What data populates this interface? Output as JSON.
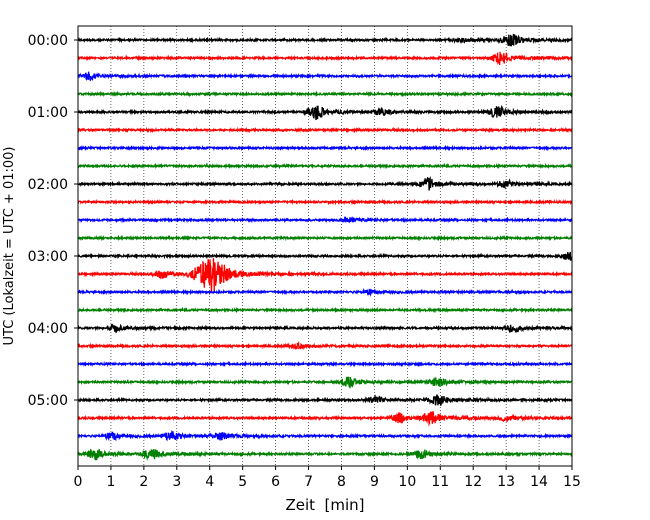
{
  "chart_data": {
    "type": "line",
    "title": "",
    "xlabel": "Zeit  [min]",
    "ylabel": "UTC (Lokalzeit = UTC + 01:00)",
    "xlim": [
      0,
      15
    ],
    "x_ticks": [
      "0",
      "1",
      "2",
      "3",
      "4",
      "5",
      "6",
      "7",
      "8",
      "9",
      "10",
      "11",
      "12",
      "13",
      "14",
      "15"
    ],
    "y_ticks": [
      "00:00",
      "01:00",
      "02:00",
      "03:00",
      "04:00",
      "05:00"
    ],
    "y_tick_trace_index": [
      0,
      4,
      8,
      12,
      16,
      20
    ],
    "grid": "vertical dotted",
    "trace_interval_min": 15,
    "trace_colors": [
      "#000000",
      "#ff0000",
      "#0000ff",
      "#008000"
    ],
    "traces": [
      {
        "start": "00:00",
        "color": "#000000",
        "bursts": [
          {
            "t": 13.1,
            "amp": 6
          },
          {
            "t": 11.6,
            "amp": 2
          }
        ]
      },
      {
        "start": "00:15",
        "color": "#ff0000",
        "bursts": [
          {
            "t": 12.8,
            "amp": 6
          }
        ]
      },
      {
        "start": "00:30",
        "color": "#0000ff",
        "bursts": [
          {
            "t": 0.3,
            "amp": 3
          }
        ]
      },
      {
        "start": "00:45",
        "color": "#008000",
        "bursts": []
      },
      {
        "start": "01:00",
        "color": "#000000",
        "bursts": [
          {
            "t": 7.2,
            "amp": 7
          },
          {
            "t": 9.2,
            "amp": 3
          },
          {
            "t": 12.7,
            "amp": 6
          }
        ]
      },
      {
        "start": "01:15",
        "color": "#ff0000",
        "bursts": []
      },
      {
        "start": "01:30",
        "color": "#0000ff",
        "bursts": []
      },
      {
        "start": "01:45",
        "color": "#008000",
        "bursts": []
      },
      {
        "start": "02:00",
        "color": "#000000",
        "bursts": [
          {
            "t": 10.6,
            "amp": 5
          },
          {
            "t": 13.0,
            "amp": 3
          }
        ]
      },
      {
        "start": "02:15",
        "color": "#ff0000",
        "bursts": []
      },
      {
        "start": "02:30",
        "color": "#0000ff",
        "bursts": [
          {
            "t": 8.2,
            "amp": 2
          }
        ]
      },
      {
        "start": "02:45",
        "color": "#008000",
        "bursts": []
      },
      {
        "start": "03:00",
        "color": "#000000",
        "bursts": [
          {
            "t": 14.9,
            "amp": 4
          }
        ]
      },
      {
        "start": "03:15",
        "color": "#ff0000",
        "bursts": [
          {
            "t": 4.0,
            "amp": 16
          },
          {
            "t": 2.5,
            "amp": 4
          }
        ]
      },
      {
        "start": "03:30",
        "color": "#0000ff",
        "bursts": [
          {
            "t": 8.8,
            "amp": 2
          }
        ]
      },
      {
        "start": "03:45",
        "color": "#008000",
        "bursts": []
      },
      {
        "start": "04:00",
        "color": "#000000",
        "bursts": [
          {
            "t": 13.2,
            "amp": 4
          },
          {
            "t": 1.1,
            "amp": 3
          }
        ]
      },
      {
        "start": "04:15",
        "color": "#ff0000",
        "bursts": [
          {
            "t": 6.6,
            "amp": 2
          }
        ]
      },
      {
        "start": "04:30",
        "color": "#0000ff",
        "bursts": []
      },
      {
        "start": "04:45",
        "color": "#008000",
        "bursts": [
          {
            "t": 8.2,
            "amp": 5
          },
          {
            "t": 10.9,
            "amp": 4
          }
        ]
      },
      {
        "start": "05:00",
        "color": "#000000",
        "bursts": [
          {
            "t": 10.9,
            "amp": 5
          },
          {
            "t": 9.0,
            "amp": 3
          }
        ]
      },
      {
        "start": "05:15",
        "color": "#ff0000",
        "bursts": [
          {
            "t": 10.7,
            "amp": 6
          },
          {
            "t": 9.7,
            "amp": 4
          },
          {
            "t": 13.0,
            "amp": 3
          }
        ]
      },
      {
        "start": "05:30",
        "color": "#0000ff",
        "bursts": [
          {
            "t": 2.8,
            "amp": 4
          },
          {
            "t": 1.0,
            "amp": 3
          },
          {
            "t": 4.3,
            "amp": 3
          }
        ]
      },
      {
        "start": "05:45",
        "color": "#008000",
        "bursts": [
          {
            "t": 0.5,
            "amp": 5
          },
          {
            "t": 2.2,
            "amp": 5
          },
          {
            "t": 10.4,
            "amp": 4
          }
        ]
      }
    ]
  }
}
